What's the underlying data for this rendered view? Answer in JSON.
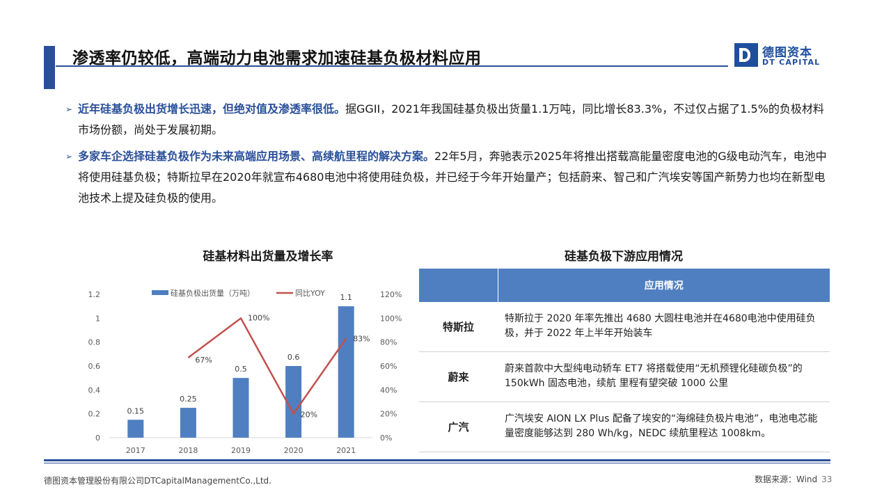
{
  "header": {
    "title": "渗透率仍较低，高端动力电池需求加速硅基负极材料应用",
    "logo_cn": "德图资本",
    "logo_en": "DT CAPITAL"
  },
  "bullets": [
    {
      "lead": "近年硅基负极出货增长迅速，但绝对值及渗透率很低。",
      "text": "据GGII，2021年我国硅基负极出货量1.1万吨，同比增长83.3%，不过仅占据了1.5%的负极材料市场份额，尚处于发展初期。"
    },
    {
      "lead": "多家车企选择硅基负极作为未来高端应用场景、高续航里程的解决方案。",
      "text": "22年5月，奔驰表示2025年将推出搭载高能量密度电池的G级电动汽车，电池中将使用硅基负极；特斯拉早在2020年就宣布4680电池中将使用硅负极，并已经于今年开始量产；包括蔚来、智己和广汽埃安等国产新势力也均在新型电池技术上提及硅负极的使用。"
    }
  ],
  "chart_data": {
    "type": "bar",
    "title": "硅基材料出货量及增长率",
    "categories": [
      "2017",
      "2018",
      "2019",
      "2020",
      "2021"
    ],
    "series": [
      {
        "name": "硅基负极出货量（万吨）",
        "type": "bar",
        "axis": "left",
        "values": [
          0.15,
          0.25,
          0.5,
          0.6,
          1.1
        ],
        "labels": [
          "0.15",
          "0.25",
          "0.5",
          "0.6",
          "1.1"
        ],
        "color": "#4f7fc0"
      },
      {
        "name": "同比YOY",
        "type": "line",
        "axis": "right",
        "values": [
          null,
          67,
          100,
          20,
          83
        ],
        "labels": [
          "",
          "67%",
          "100%",
          "20%",
          "83%"
        ],
        "color": "#c0504d"
      }
    ],
    "y_left": {
      "ticks": [
        "0",
        "0.2",
        "0.4",
        "0.6",
        "0.8",
        "1",
        "1.2"
      ],
      "ylim": [
        0,
        1.2
      ]
    },
    "y_right": {
      "ticks": [
        "0%",
        "20%",
        "40%",
        "60%",
        "80%",
        "100%",
        "120%"
      ],
      "ylim": [
        0,
        120
      ]
    },
    "legend": "top",
    "grid": false
  },
  "table": {
    "title": "硅基负极下游应用情况",
    "header": [
      "",
      "应用情况"
    ],
    "rows": [
      {
        "name": "特斯拉",
        "desc": "特斯拉于 2020 年率先推出 4680 大圆柱电池并在4680电池中使用硅负极，并于 2022 年上半年开始装车"
      },
      {
        "name": "蔚来",
        "desc": "蔚来首款中大型纯电动轿车 ET7 将搭载使用“无机预锂化硅碳负极”的 150kWh 固态电池，续航 里程有望突破 1000 公里"
      },
      {
        "name": "广汽",
        "desc": "广汽埃安 AION LX Plus 配备了埃安的“海绵硅负极片电池”，电池电芯能量密度能够达到 280 Wh/kg，NEDC 续航里程达 1008km。"
      }
    ]
  },
  "footer": {
    "company": "德图资本管理股份有限公司DTCapitalManagementCo.,Ltd.",
    "source": "数据来源：Wind",
    "page": "33"
  }
}
